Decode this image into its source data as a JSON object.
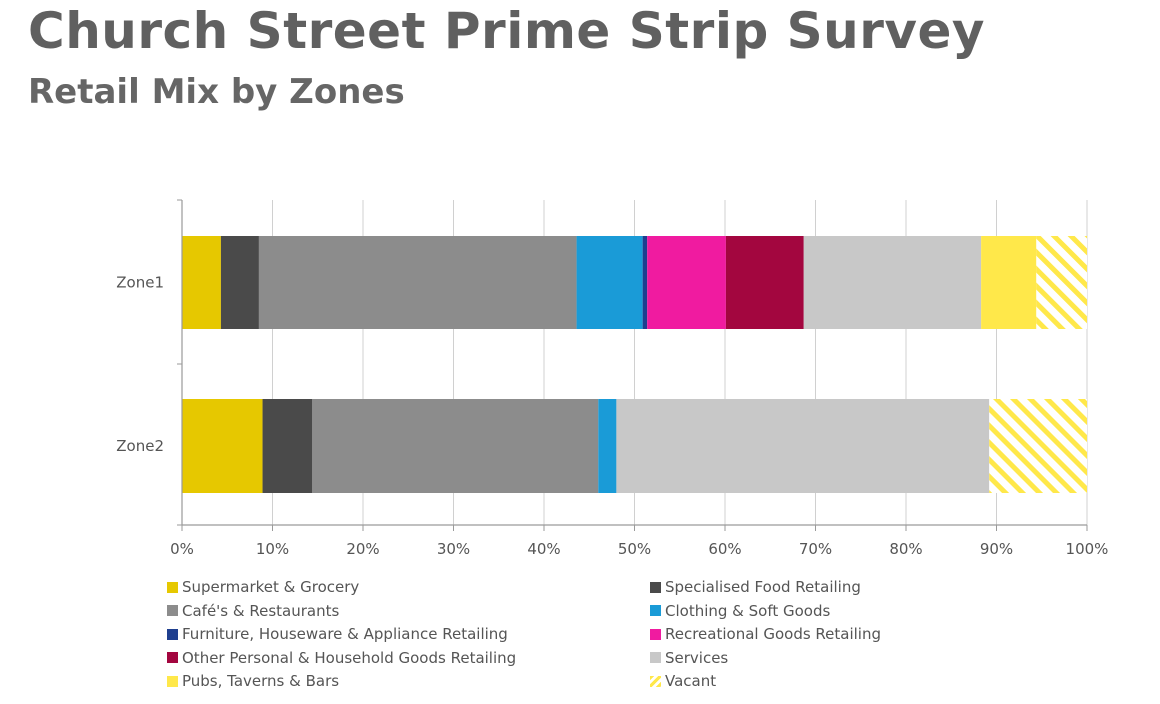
{
  "chart_data": {
    "type": "bar",
    "orientation": "horizontal",
    "stacked": true,
    "title": "Church Street Prime Strip Survey",
    "subtitle": "Retail Mix by Zones",
    "categories": [
      "Zone1",
      "Zone2"
    ],
    "xlim": [
      0,
      100
    ],
    "x_ticks": [
      "0%",
      "10%",
      "20%",
      "30%",
      "40%",
      "50%",
      "60%",
      "70%",
      "80%",
      "90%",
      "100%"
    ],
    "grid": true,
    "legend_position": "bottom",
    "series": [
      {
        "name": "Supermarket & Grocery",
        "color": "#e6c800",
        "values": [
          4.3,
          8.9
        ]
      },
      {
        "name": "Specialised Food Retailing",
        "color": "#4a4a4a",
        "values": [
          4.2,
          5.5
        ]
      },
      {
        "name": "Café's & Restaurants",
        "color": "#8c8c8c",
        "values": [
          35.1,
          31.6
        ]
      },
      {
        "name": "Clothing & Soft Goods",
        "color": "#1a9bd7",
        "values": [
          7.3,
          2.0
        ]
      },
      {
        "name": "Furniture, Houseware & Appliance Retailing",
        "color": "#1f3f8f",
        "values": [
          0.5,
          0
        ]
      },
      {
        "name": "Recreational Goods Retailing",
        "color": "#f01ba0",
        "values": [
          8.7,
          0
        ]
      },
      {
        "name": "Other Personal & Household Goods Retailing",
        "color": "#a3063f",
        "values": [
          8.6,
          0
        ]
      },
      {
        "name": "Services",
        "color": "#c8c8c8",
        "values": [
          19.6,
          41.2
        ]
      },
      {
        "name": "Pubs, Taverns & Bars",
        "color": "#ffe84a",
        "values": [
          6.1,
          0
        ]
      },
      {
        "name": "Vacant",
        "color": "#ffe84a",
        "pattern": "hatch",
        "values": [
          5.6,
          10.8
        ]
      }
    ]
  }
}
